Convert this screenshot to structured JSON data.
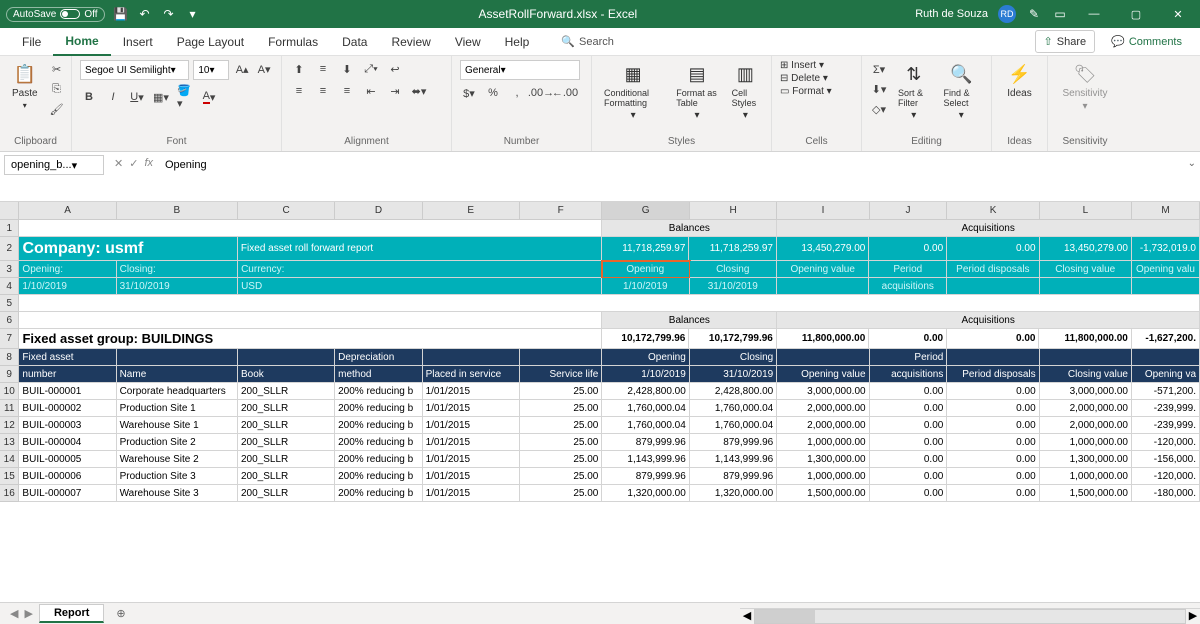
{
  "title_bar": {
    "autosave_label": "AutoSave",
    "autosave_state": "Off",
    "filename": "AssetRollForward.xlsx  -  Excel",
    "username": "Ruth de Souza",
    "user_initials": "RD"
  },
  "tabs": {
    "file": "File",
    "home": "Home",
    "insert": "Insert",
    "page_layout": "Page Layout",
    "formulas": "Formulas",
    "data": "Data",
    "review": "Review",
    "view": "View",
    "help": "Help",
    "search": "Search",
    "share": "Share",
    "comments": "Comments"
  },
  "ribbon": {
    "clipboard": {
      "paste": "Paste",
      "label": "Clipboard"
    },
    "font": {
      "name": "Segoe UI Semilight",
      "size": "10",
      "label": "Font"
    },
    "alignment": {
      "label": "Alignment"
    },
    "number": {
      "format": "General",
      "label": "Number"
    },
    "styles": {
      "conditional": "Conditional Formatting",
      "format_table": "Format as Table",
      "cell_styles": "Cell Styles",
      "label": "Styles"
    },
    "cells": {
      "insert": "Insert",
      "delete": "Delete",
      "format": "Format",
      "label": "Cells"
    },
    "editing": {
      "sort": "Sort & Filter",
      "find": "Find & Select",
      "label": "Editing"
    },
    "ideas": {
      "ideas": "Ideas",
      "label": "Ideas"
    },
    "sensitivity": {
      "btn": "Sensitivity",
      "label": "Sensitivity"
    }
  },
  "formula_bar": {
    "name_box": "opening_b...",
    "value": "Opening"
  },
  "columns": {
    "A": 100,
    "B": 125,
    "C": 100,
    "D": 90,
    "E": 100,
    "F": 85,
    "G": 90,
    "H": 90,
    "I": 95,
    "J": 80,
    "K": 95,
    "L": 95,
    "M": 70
  },
  "category_row": {
    "balances": "Balances",
    "acquisitions": "Acquisitions"
  },
  "company_header": {
    "title": "Company: usmf",
    "subtitle": "Fixed asset roll forward report",
    "opening_label": "Opening:",
    "closing_label": "Closing:",
    "currency_label": "Currency:",
    "opening_date": "1/10/2019",
    "closing_date": "31/10/2019",
    "currency": "USD",
    "totals": {
      "g": "11,718,259.97",
      "h": "11,718,259.97",
      "i": "13,450,279.00",
      "j": "0.00",
      "k": "0.00",
      "l": "13,450,279.00",
      "m": "-1,732,019.0"
    },
    "col_labels": {
      "g": "Opening",
      "h": "Closing",
      "i": "Opening value",
      "j": "Period acquisitions",
      "j1": "Period",
      "j2": "acquisitions",
      "k": "Period disposals",
      "l": "Closing value",
      "m": "Opening valu"
    },
    "date_row": {
      "g": "1/10/2019",
      "h": "31/10/2019"
    }
  },
  "group_header": {
    "title": "Fixed asset group: BUILDINGS",
    "balances": "Balances",
    "acquisitions": "Acquisitions",
    "totals": {
      "g": "10,172,799.96",
      "h": "10,172,799.96",
      "i": "11,800,000.00",
      "j": "0.00",
      "k": "0.00",
      "l": "11,800,000.00",
      "m": "-1,627,200."
    }
  },
  "table_headers": {
    "a": "Fixed asset number",
    "a1": "Fixed asset",
    "a2": "number",
    "b": "Name",
    "c": "Book",
    "d": "Depreciation method",
    "d1": "Depreciation",
    "d2": "method",
    "e": "Placed in service",
    "f": "Service life",
    "g1": "Opening",
    "g2": "1/10/2019",
    "h1": "Closing",
    "h2": "31/10/2019",
    "i": "Opening value",
    "j1": "Period",
    "j2": "acquisitions",
    "k": "Period disposals",
    "l": "Closing value",
    "m": "Opening va"
  },
  "rows": [
    {
      "rn": "10",
      "a": "BUIL-000001",
      "b": "Corporate headquarters",
      "c": "200_SLLR",
      "d": "200% reducing b",
      "e": "1/01/2015",
      "f": "25.00",
      "g": "2,428,800.00",
      "h": "2,428,800.00",
      "i": "3,000,000.00",
      "j": "0.00",
      "k": "0.00",
      "l": "3,000,000.00",
      "m": "-571,200."
    },
    {
      "rn": "11",
      "a": "BUIL-000002",
      "b": "Production Site 1",
      "c": "200_SLLR",
      "d": "200% reducing b",
      "e": "1/01/2015",
      "f": "25.00",
      "g": "1,760,000.04",
      "h": "1,760,000.04",
      "i": "2,000,000.00",
      "j": "0.00",
      "k": "0.00",
      "l": "2,000,000.00",
      "m": "-239,999."
    },
    {
      "rn": "12",
      "a": "BUIL-000003",
      "b": "Warehouse Site 1",
      "c": "200_SLLR",
      "d": "200% reducing b",
      "e": "1/01/2015",
      "f": "25.00",
      "g": "1,760,000.04",
      "h": "1,760,000.04",
      "i": "2,000,000.00",
      "j": "0.00",
      "k": "0.00",
      "l": "2,000,000.00",
      "m": "-239,999."
    },
    {
      "rn": "13",
      "a": "BUIL-000004",
      "b": "Production Site 2",
      "c": "200_SLLR",
      "d": "200% reducing b",
      "e": "1/01/2015",
      "f": "25.00",
      "g": "879,999.96",
      "h": "879,999.96",
      "i": "1,000,000.00",
      "j": "0.00",
      "k": "0.00",
      "l": "1,000,000.00",
      "m": "-120,000."
    },
    {
      "rn": "14",
      "a": "BUIL-000005",
      "b": "Warehouse Site 2",
      "c": "200_SLLR",
      "d": "200% reducing b",
      "e": "1/01/2015",
      "f": "25.00",
      "g": "1,143,999.96",
      "h": "1,143,999.96",
      "i": "1,300,000.00",
      "j": "0.00",
      "k": "0.00",
      "l": "1,300,000.00",
      "m": "-156,000."
    },
    {
      "rn": "15",
      "a": "BUIL-000006",
      "b": "Production Site 3",
      "c": "200_SLLR",
      "d": "200% reducing b",
      "e": "1/01/2015",
      "f": "25.00",
      "g": "879,999.96",
      "h": "879,999.96",
      "i": "1,000,000.00",
      "j": "0.00",
      "k": "0.00",
      "l": "1,000,000.00",
      "m": "-120,000."
    },
    {
      "rn": "16",
      "a": "BUIL-000007",
      "b": "Warehouse Site 3",
      "c": "200_SLLR",
      "d": "200% reducing b",
      "e": "1/01/2015",
      "f": "25.00",
      "g": "1,320,000.00",
      "h": "1,320,000.00",
      "i": "1,500,000.00",
      "j": "0.00",
      "k": "0.00",
      "l": "1,500,000.00",
      "m": "-180,000."
    }
  ],
  "sheet_tabs": {
    "report": "Report"
  },
  "colors": {
    "excel_green": "#217346",
    "teal": "#00b0b9",
    "navy": "#1e3a5f",
    "selection": "#e8652b"
  }
}
